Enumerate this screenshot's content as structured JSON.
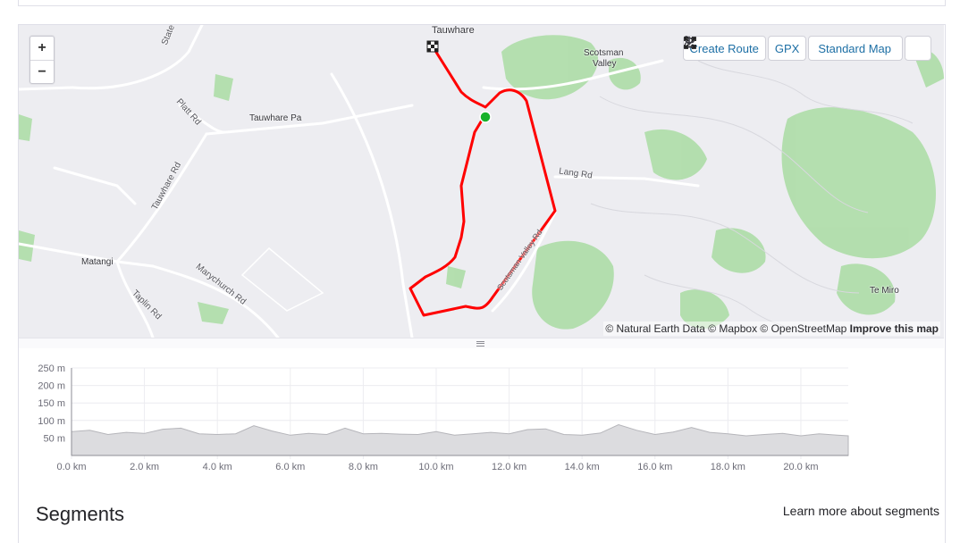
{
  "map": {
    "zoom_in_label": "+",
    "zoom_out_label": "−",
    "toolbar": {
      "create_route_label": "Create Route",
      "gpx_label": "GPX",
      "map_style_label": "Standard Map"
    },
    "labels": {
      "tauwhare": "Tauwhare",
      "scotsman_valley": [
        "Scotsman",
        "Valley"
      ],
      "state_hwy": "State Hwy",
      "platt_rd": "Platt Rd",
      "tauwhare_pa": "Tauwhare Pa",
      "tauwhare_rd": "Tauwhare Rd",
      "lang_rd": "Lang Rd",
      "matangi": "Matangi",
      "marychurch_rd": "Marychurch Rd",
      "taplin_rd": "Taplin Rd",
      "scotsman_valley_rd": "Scotsman Valley Rd",
      "te_miro": "Te Miro"
    },
    "attribution_text": "© Natural Earth Data © Mapbox © OpenStreetMap",
    "attribution_link": "Improve this map",
    "route_color": "#ff0000",
    "start_marker_color": "#17b12b",
    "terrain_color": "#8fd18f"
  },
  "elevation": {
    "y_axis_labels": [
      "250 m",
      "200 m",
      "150 m",
      "100 m",
      "50 m"
    ],
    "x_axis_labels": [
      "0.0 km",
      "2.0 km",
      "4.0 km",
      "6.0 km",
      "8.0 km",
      "10.0 km",
      "12.0 km",
      "14.0 km",
      "16.0 km",
      "18.0 km",
      "20.0 km"
    ]
  },
  "chart_data": {
    "type": "area",
    "xlabel": "",
    "ylabel": "",
    "xlim": [
      0,
      21.3
    ],
    "ylim": [
      0,
      250
    ],
    "x": [
      0,
      0.5,
      1.0,
      1.5,
      2.0,
      2.5,
      3.0,
      3.5,
      4.0,
      4.5,
      5.0,
      5.5,
      6.0,
      6.5,
      7.0,
      7.5,
      8.0,
      8.5,
      9.0,
      9.5,
      10.0,
      10.5,
      11.0,
      11.5,
      12.0,
      12.5,
      13.0,
      13.5,
      14.0,
      14.5,
      15.0,
      15.5,
      16.0,
      16.5,
      17.0,
      17.5,
      18.0,
      18.5,
      19.0,
      19.5,
      20.0,
      20.5,
      21.0,
      21.3
    ],
    "y": [
      68,
      72,
      60,
      66,
      63,
      75,
      78,
      62,
      60,
      62,
      85,
      70,
      58,
      63,
      60,
      78,
      62,
      63,
      61,
      60,
      68,
      58,
      62,
      66,
      62,
      74,
      76,
      60,
      58,
      64,
      88,
      72,
      60,
      67,
      80,
      66,
      62,
      56,
      60,
      63,
      56,
      62,
      58,
      56
    ],
    "series": [
      {
        "name": "",
        "values": [
          68,
          72,
          60,
          66,
          63,
          75,
          78,
          62,
          60,
          62,
          85,
          70,
          58,
          63,
          60,
          78,
          62,
          63,
          61,
          60,
          68,
          58,
          62,
          66,
          62,
          74,
          76,
          60,
          58,
          64,
          88,
          72,
          60,
          67,
          80,
          66,
          62,
          56,
          60,
          63,
          56,
          62,
          58,
          56
        ]
      }
    ]
  },
  "segments": {
    "title": "Segments",
    "learn_more_label": "Learn more about segments"
  }
}
